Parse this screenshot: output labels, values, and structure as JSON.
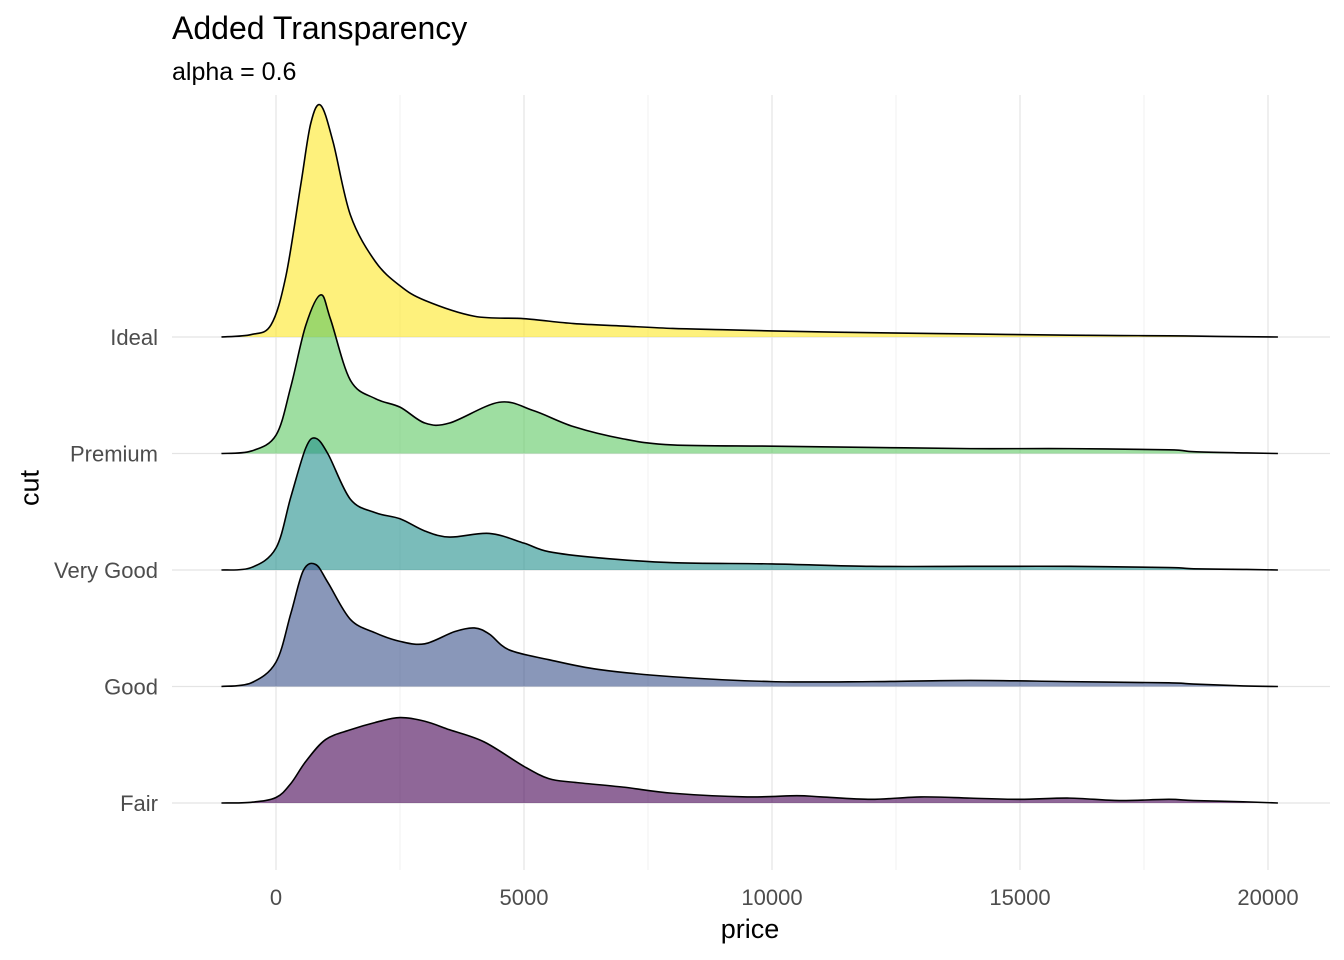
{
  "chart_data": {
    "type": "area",
    "title": "Added Transparency",
    "subtitle": "alpha = 0.6",
    "xlabel": "price",
    "ylabel": "cut",
    "xlim": [
      -1200,
      20200
    ],
    "x_ticks": [
      0,
      5000,
      10000,
      15000,
      20000
    ],
    "x_tick_labels": [
      "0",
      "5000",
      "10000",
      "15000",
      "20000"
    ],
    "categories": [
      "Fair",
      "Good",
      "Very Good",
      "Premium",
      "Ideal"
    ],
    "grid": true,
    "alpha": 0.6,
    "colors": {
      "Fair": "#440154",
      "Good": "#3B528B",
      "Very Good": "#21908C",
      "Premium": "#5DC863",
      "Ideal": "#FDE725"
    },
    "series": [
      {
        "name": "Fair",
        "x": [
          -1100,
          -500,
          0,
          300,
          600,
          1000,
          1500,
          2000,
          2500,
          3000,
          3500,
          4200,
          5000,
          5500,
          6000,
          7000,
          8000,
          9500,
          10500,
          11000,
          12000,
          13000,
          14000,
          15000,
          16000,
          17000,
          18000,
          18500,
          19500,
          20200
        ],
        "density": [
          0.0,
          0.006,
          0.045,
          0.16,
          0.34,
          0.52,
          0.6,
          0.66,
          0.7,
          0.67,
          0.6,
          0.5,
          0.3,
          0.2,
          0.17,
          0.13,
          0.08,
          0.05,
          0.06,
          0.05,
          0.03,
          0.05,
          0.04,
          0.03,
          0.04,
          0.02,
          0.03,
          0.02,
          0.01,
          0.0
        ]
      },
      {
        "name": "Good",
        "x": [
          -1100,
          -500,
          0,
          300,
          550,
          800,
          1050,
          1500,
          2000,
          2500,
          3000,
          3600,
          4000,
          4300,
          4700,
          5500,
          6500,
          8000,
          10000,
          12000,
          14000,
          16000,
          18000,
          18500,
          19500,
          20200
        ],
        "density": [
          0.0,
          0.03,
          0.2,
          0.6,
          0.95,
          1.0,
          0.85,
          0.55,
          0.44,
          0.37,
          0.35,
          0.45,
          0.48,
          0.43,
          0.3,
          0.22,
          0.14,
          0.08,
          0.04,
          0.04,
          0.05,
          0.04,
          0.03,
          0.02,
          0.005,
          0.0
        ]
      },
      {
        "name": "Very Good",
        "x": [
          -1100,
          -500,
          0,
          300,
          600,
          800,
          1050,
          1500,
          2000,
          2500,
          3000,
          3500,
          4300,
          5000,
          5500,
          6500,
          8000,
          10000,
          12000,
          14000,
          16000,
          18000,
          18500,
          19500,
          20200
        ],
        "density": [
          0.0,
          0.02,
          0.18,
          0.6,
          1.0,
          1.08,
          0.95,
          0.58,
          0.47,
          0.42,
          0.32,
          0.27,
          0.3,
          0.22,
          0.15,
          0.1,
          0.06,
          0.05,
          0.03,
          0.03,
          0.03,
          0.02,
          0.01,
          0.005,
          0.0
        ]
      },
      {
        "name": "Premium",
        "x": [
          -1100,
          -500,
          0,
          300,
          600,
          900,
          1100,
          1500,
          2000,
          2500,
          3000,
          3500,
          4500,
          5200,
          6000,
          7000,
          8000,
          10000,
          12000,
          14000,
          16000,
          18000,
          18500,
          19500,
          20200
        ],
        "density": [
          0.0,
          0.02,
          0.15,
          0.55,
          1.05,
          1.3,
          1.1,
          0.6,
          0.45,
          0.38,
          0.25,
          0.25,
          0.42,
          0.35,
          0.22,
          0.12,
          0.07,
          0.06,
          0.05,
          0.04,
          0.04,
          0.03,
          0.015,
          0.005,
          0.0
        ]
      },
      {
        "name": "Ideal",
        "x": [
          -1100,
          -500,
          -100,
          200,
          500,
          700,
          900,
          1150,
          1500,
          2000,
          2500,
          3000,
          4000,
          5000,
          6000,
          7000,
          8000,
          9000,
          10000,
          12000,
          14000,
          16000,
          17000,
          18000,
          19000,
          20200
        ],
        "density": [
          0.0,
          0.02,
          0.1,
          0.5,
          1.25,
          1.75,
          1.9,
          1.6,
          1.0,
          0.62,
          0.42,
          0.3,
          0.17,
          0.15,
          0.11,
          0.09,
          0.07,
          0.06,
          0.05,
          0.035,
          0.025,
          0.015,
          0.012,
          0.01,
          0.005,
          0.0
        ]
      }
    ]
  }
}
